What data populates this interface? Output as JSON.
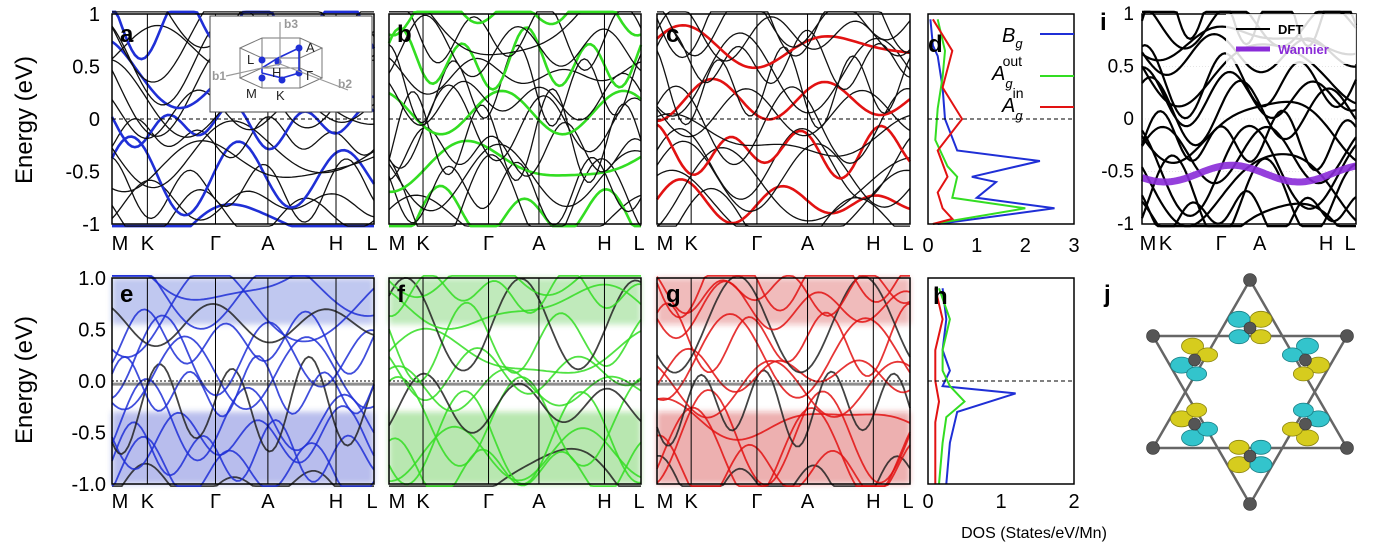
{
  "figure": {
    "y_axis_label": "Energy (eV)",
    "dos_axis_label": "DOS (States/eV/Mn)",
    "kpath_labels": [
      "M",
      "K",
      "Γ",
      "A",
      "H",
      "L"
    ],
    "colors": {
      "Bg": "#1f2fd6",
      "Ag_out": "#33dd22",
      "Ag_in": "#e21212",
      "wannier": "#8a2bd8"
    }
  },
  "panels": {
    "a": {
      "label": "a",
      "type": "band",
      "ylim": [
        -1,
        1
      ],
      "yticks": [
        "1",
        "0.5",
        "0",
        "-0.5",
        "-1"
      ],
      "projection": "Bg"
    },
    "b": {
      "label": "b",
      "type": "band",
      "ylim": [
        -1,
        1
      ],
      "projection": "Ag_out"
    },
    "c": {
      "label": "c",
      "type": "band",
      "ylim": [
        -1,
        1
      ],
      "projection": "Ag_in"
    },
    "d": {
      "label": "d",
      "type": "dos",
      "xticks": [
        "0",
        "1",
        "2",
        "3"
      ],
      "ylim": [
        -1,
        1
      ]
    },
    "e": {
      "label": "e",
      "type": "spectral",
      "ylim": [
        -1.0,
        1.0
      ],
      "yticks": [
        "1.0",
        "0.5",
        "0.0",
        "-0.5",
        "-1.0"
      ],
      "projection": "Bg"
    },
    "f": {
      "label": "f",
      "type": "spectral",
      "projection": "Ag_out"
    },
    "g": {
      "label": "g",
      "type": "spectral",
      "projection": "Ag_in"
    },
    "h": {
      "label": "h",
      "type": "dos",
      "xticks": [
        "0",
        "1",
        "2"
      ]
    },
    "i": {
      "label": "i",
      "type": "band",
      "yticks": [
        "1",
        "0.5",
        "0",
        "-0.5",
        "-1"
      ],
      "legend": [
        "DFT",
        "Wannier"
      ]
    },
    "j": {
      "label": "j",
      "type": "orbital"
    }
  },
  "legend_d": {
    "Bg": {
      "base": "B",
      "sub": "g",
      "sup": ""
    },
    "Ag_out": {
      "base": "A",
      "sub": "g",
      "sup": "out"
    },
    "Ag_in": {
      "base": "A",
      "sub": "g",
      "sup": "in"
    }
  },
  "bz_inset": {
    "labels": [
      "b3",
      "A",
      "L",
      "H",
      "Γ",
      "b1",
      "M",
      "K",
      "b2"
    ]
  },
  "chart_data": [
    {
      "panel": "d",
      "type": "line",
      "xlabel": "",
      "ylabel": "Energy (eV)",
      "xlim": [
        0,
        3
      ],
      "ylim": [
        -1,
        1
      ],
      "series": [
        {
          "name": "Bg",
          "x": [
            0.05,
            0.1,
            0.2,
            0.3,
            0.35,
            0.6,
            2.3,
            0.9,
            1.4,
            1.0,
            2.6,
            0.2
          ],
          "y": [
            0.95,
            0.7,
            0.6,
            0.3,
            0.0,
            -0.3,
            -0.4,
            -0.55,
            -0.6,
            -0.75,
            -0.85,
            -1.0
          ]
        },
        {
          "name": "Ag_out",
          "x": [
            0.2,
            0.35,
            0.3,
            0.2,
            0.15,
            0.4,
            0.6,
            0.5,
            2.0,
            0.1
          ],
          "y": [
            0.95,
            0.65,
            0.4,
            0.1,
            -0.2,
            -0.45,
            -0.55,
            -0.75,
            -0.85,
            -1.0
          ]
        },
        {
          "name": "Ag_in",
          "x": [
            0.1,
            0.5,
            0.3,
            0.7,
            0.2,
            0.4,
            0.2,
            0.3,
            0.5,
            0.1
          ],
          "y": [
            0.95,
            0.65,
            0.3,
            0.0,
            -0.3,
            -0.55,
            -0.7,
            -0.85,
            -0.95,
            -1.0
          ]
        }
      ]
    },
    {
      "panel": "h",
      "type": "line",
      "xlabel": "DOS (States/eV/Mn)",
      "xlim": [
        0,
        2
      ],
      "ylim": [
        -1.0,
        1.0
      ],
      "series": [
        {
          "name": "Bg",
          "x": [
            0.2,
            0.25,
            0.2,
            0.3,
            0.2,
            1.2,
            0.4,
            0.3,
            0.25
          ],
          "y": [
            0.9,
            0.6,
            0.3,
            0.1,
            -0.05,
            -0.12,
            -0.3,
            -0.6,
            -1.0
          ]
        },
        {
          "name": "Ag_out",
          "x": [
            0.15,
            0.3,
            0.2,
            0.2,
            0.3,
            0.5,
            0.25,
            0.2,
            0.15
          ],
          "y": [
            0.9,
            0.6,
            0.3,
            0.1,
            -0.05,
            -0.2,
            -0.35,
            -0.6,
            -1.0
          ]
        },
        {
          "name": "Ag_in",
          "x": [
            0.1,
            0.2,
            0.1,
            0.1,
            0.15,
            0.1,
            0.1,
            0.1
          ],
          "y": [
            0.9,
            0.6,
            0.3,
            0.0,
            -0.2,
            -0.4,
            -0.7,
            -1.0
          ]
        }
      ]
    }
  ]
}
